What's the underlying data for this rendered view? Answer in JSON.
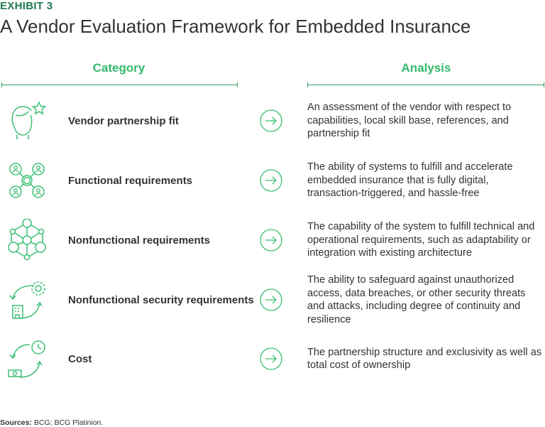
{
  "exhibit": "EXHIBIT 3",
  "title": "A Vendor Evaluation Framework for Embedded Insurance",
  "headers": {
    "category": "Category",
    "analysis": "Analysis"
  },
  "colors": {
    "exhibit": "#1f7a52",
    "accent": "#32b96b",
    "icon": "#3cbf74"
  },
  "rows": [
    {
      "icon": "person-star-icon",
      "category": "Vendor partnership fit",
      "analysis": "An assessment of the vendor with respect to capabilities, local skill base, references, and partnership fit"
    },
    {
      "icon": "people-network-icon",
      "category": "Functional requirements",
      "analysis": "The ability of systems to fulfill and accelerate embedded insurance that is fully digital, transaction-triggered, and hassle-free"
    },
    {
      "icon": "node-network-icon",
      "category": "Nonfunctional requirements",
      "analysis": "The capability of the system to fulfill technical and operational requirements, such as adaptability or integration with existing architecture"
    },
    {
      "icon": "building-gear-cycle-icon",
      "category": "Nonfunctional security requirements",
      "analysis": "The ability to safeguard against unauthorized access, data breaches, or other security threats and attacks, including degree of continuity and resilience"
    },
    {
      "icon": "money-clock-cycle-icon",
      "category": "Cost",
      "analysis": "The partnership structure and exclusivity as well as total cost of ownership"
    }
  ],
  "sources": {
    "label": "Sources:",
    "text": " BCG; BCG Platinion."
  }
}
